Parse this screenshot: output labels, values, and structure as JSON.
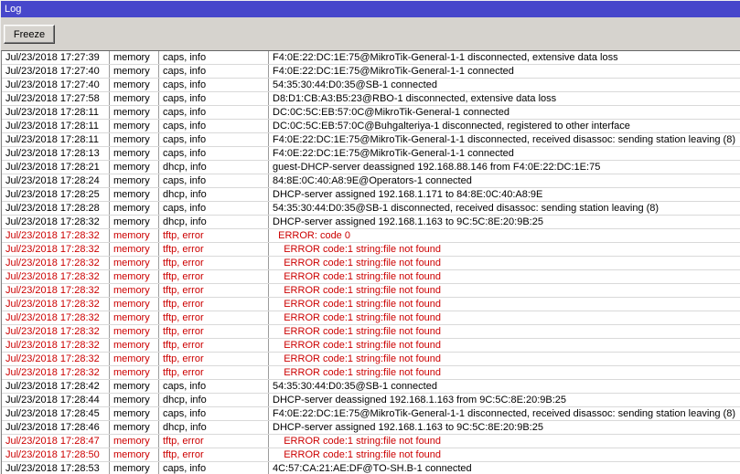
{
  "window": {
    "title": "Log"
  },
  "toolbar": {
    "freeze_label": "Freeze"
  },
  "colors": {
    "titlebar_background": "#4747cb",
    "titlebar_text": "#ffffff",
    "error_text": "#cc0000",
    "toolbar_background": "#d6d3ce",
    "table_background": "#ffffff"
  },
  "log": {
    "rows": [
      {
        "time": "Jul/23/2018 17:27:39",
        "buffer": "memory",
        "topics": "caps, info",
        "message": "F4:0E:22:DC:1E:75@MikroTik-General-1-1 disconnected, extensive data loss",
        "error": false
      },
      {
        "time": "Jul/23/2018 17:27:40",
        "buffer": "memory",
        "topics": "caps, info",
        "message": "F4:0E:22:DC:1E:75@MikroTik-General-1-1 connected",
        "error": false
      },
      {
        "time": "Jul/23/2018 17:27:40",
        "buffer": "memory",
        "topics": "caps, info",
        "message": "54:35:30:44:D0:35@SB-1 connected",
        "error": false
      },
      {
        "time": "Jul/23/2018 17:27:58",
        "buffer": "memory",
        "topics": "caps, info",
        "message": "D8:D1:CB:A3:B5:23@RBO-1 disconnected, extensive data loss",
        "error": false
      },
      {
        "time": "Jul/23/2018 17:28:11",
        "buffer": "memory",
        "topics": "caps, info",
        "message": "DC:0C:5C:EB:57:0C@MikroTik-General-1 connected",
        "error": false
      },
      {
        "time": "Jul/23/2018 17:28:11",
        "buffer": "memory",
        "topics": "caps, info",
        "message": "DC:0C:5C:EB:57:0C@Buhgalteriya-1 disconnected, registered to other interface",
        "error": false
      },
      {
        "time": "Jul/23/2018 17:28:11",
        "buffer": "memory",
        "topics": "caps, info",
        "message": "F4:0E:22:DC:1E:75@MikroTik-General-1-1 disconnected, received disassoc: sending station leaving (8)",
        "error": false
      },
      {
        "time": "Jul/23/2018 17:28:13",
        "buffer": "memory",
        "topics": "caps, info",
        "message": "F4:0E:22:DC:1E:75@MikroTik-General-1-1 connected",
        "error": false
      },
      {
        "time": "Jul/23/2018 17:28:21",
        "buffer": "memory",
        "topics": "dhcp, info",
        "message": "guest-DHCP-server deassigned 192.168.88.146 from F4:0E:22:DC:1E:75",
        "error": false
      },
      {
        "time": "Jul/23/2018 17:28:24",
        "buffer": "memory",
        "topics": "caps, info",
        "message": "84:8E:0C:40:A8:9E@Operators-1 connected",
        "error": false
      },
      {
        "time": "Jul/23/2018 17:28:25",
        "buffer": "memory",
        "topics": "dhcp, info",
        "message": "DHCP-server assigned 192.168.1.171 to 84:8E:0C:40:A8:9E",
        "error": false
      },
      {
        "time": "Jul/23/2018 17:28:28",
        "buffer": "memory",
        "topics": "caps, info",
        "message": "54:35:30:44:D0:35@SB-1 disconnected, received disassoc: sending station leaving (8)",
        "error": false
      },
      {
        "time": "Jul/23/2018 17:28:32",
        "buffer": "memory",
        "topics": "dhcp, info",
        "message": "DHCP-server assigned 192.168.1.163 to 9C:5C:8E:20:9B:25",
        "error": false
      },
      {
        "time": "Jul/23/2018 17:28:32",
        "buffer": "memory",
        "topics": "tftp, error",
        "message": "  ERROR: code 0",
        "error": true
      },
      {
        "time": "Jul/23/2018 17:28:32",
        "buffer": "memory",
        "topics": "tftp, error",
        "message": "    ERROR code:1 string:file not found",
        "error": true
      },
      {
        "time": "Jul/23/2018 17:28:32",
        "buffer": "memory",
        "topics": "tftp, error",
        "message": "    ERROR code:1 string:file not found",
        "error": true
      },
      {
        "time": "Jul/23/2018 17:28:32",
        "buffer": "memory",
        "topics": "tftp, error",
        "message": "    ERROR code:1 string:file not found",
        "error": true
      },
      {
        "time": "Jul/23/2018 17:28:32",
        "buffer": "memory",
        "topics": "tftp, error",
        "message": "    ERROR code:1 string:file not found",
        "error": true
      },
      {
        "time": "Jul/23/2018 17:28:32",
        "buffer": "memory",
        "topics": "tftp, error",
        "message": "    ERROR code:1 string:file not found",
        "error": true
      },
      {
        "time": "Jul/23/2018 17:28:32",
        "buffer": "memory",
        "topics": "tftp, error",
        "message": "    ERROR code:1 string:file not found",
        "error": true
      },
      {
        "time": "Jul/23/2018 17:28:32",
        "buffer": "memory",
        "topics": "tftp, error",
        "message": "    ERROR code:1 string:file not found",
        "error": true
      },
      {
        "time": "Jul/23/2018 17:28:32",
        "buffer": "memory",
        "topics": "tftp, error",
        "message": "    ERROR code:1 string:file not found",
        "error": true
      },
      {
        "time": "Jul/23/2018 17:28:32",
        "buffer": "memory",
        "topics": "tftp, error",
        "message": "    ERROR code:1 string:file not found",
        "error": true
      },
      {
        "time": "Jul/23/2018 17:28:32",
        "buffer": "memory",
        "topics": "tftp, error",
        "message": "    ERROR code:1 string:file not found",
        "error": true
      },
      {
        "time": "Jul/23/2018 17:28:42",
        "buffer": "memory",
        "topics": "caps, info",
        "message": "54:35:30:44:D0:35@SB-1 connected",
        "error": false
      },
      {
        "time": "Jul/23/2018 17:28:44",
        "buffer": "memory",
        "topics": "dhcp, info",
        "message": "DHCP-server deassigned 192.168.1.163 from 9C:5C:8E:20:9B:25",
        "error": false
      },
      {
        "time": "Jul/23/2018 17:28:45",
        "buffer": "memory",
        "topics": "caps, info",
        "message": "F4:0E:22:DC:1E:75@MikroTik-General-1-1 disconnected, received disassoc: sending station leaving (8)",
        "error": false
      },
      {
        "time": "Jul/23/2018 17:28:46",
        "buffer": "memory",
        "topics": "dhcp, info",
        "message": "DHCP-server assigned 192.168.1.163 to 9C:5C:8E:20:9B:25",
        "error": false
      },
      {
        "time": "Jul/23/2018 17:28:47",
        "buffer": "memory",
        "topics": "tftp, error",
        "message": "    ERROR code:1 string:file not found",
        "error": true
      },
      {
        "time": "Jul/23/2018 17:28:50",
        "buffer": "memory",
        "topics": "tftp, error",
        "message": "    ERROR code:1 string:file not found",
        "error": true
      },
      {
        "time": "Jul/23/2018 17:28:53",
        "buffer": "memory",
        "topics": "caps, info",
        "message": "4C:57:CA:21:AE:DF@TO-SH.B-1 connected",
        "error": false
      }
    ]
  }
}
